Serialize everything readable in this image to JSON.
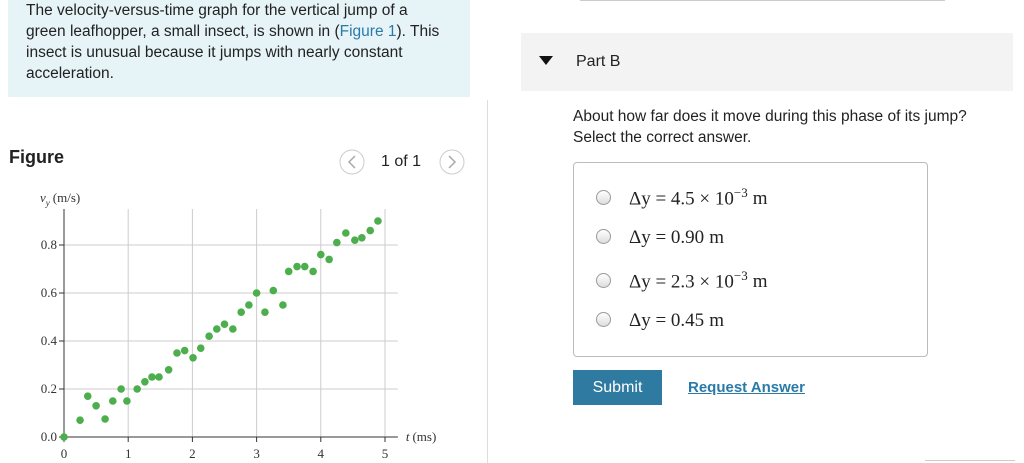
{
  "intro": {
    "before": "The velocity-versus-time graph for the vertical jump of a green leafhopper, a small insect, is shown in (",
    "link": "Figure 1",
    "after": "). This insect is unusual because it jumps with nearly constant acceleration."
  },
  "figure": {
    "title": "Figure",
    "pager": "1 of 1",
    "chart": {
      "type": "scatter",
      "y_label": {
        "var": "v",
        "sub": "y",
        "unit": "(m/s)"
      },
      "x_label": {
        "var": "t",
        "unit": "(ms)"
      },
      "color": "#4cae4c",
      "grid": true,
      "xlim": [
        0,
        5.2
      ],
      "ylim": [
        0,
        0.95
      ],
      "xticks": [
        0,
        1,
        2,
        3,
        4,
        5
      ],
      "yticks": [
        {
          "value": 0,
          "label": "0.0"
        },
        0.2,
        0.4,
        0.6,
        0.8
      ],
      "x": [
        0,
        0.25,
        0.37,
        0.5,
        0.64,
        0.76,
        0.89,
        0.98,
        1.14,
        1.26,
        1.37,
        1.48,
        1.63,
        1.76,
        1.88,
        2.01,
        2.13,
        2.26,
        2.38,
        2.5,
        2.63,
        2.76,
        2.88,
        3.0,
        3.13,
        3.26,
        3.41,
        3.5,
        3.63,
        3.75,
        3.88,
        4.0,
        4.13,
        4.25,
        4.39,
        4.53,
        4.64,
        4.77,
        4.89
      ],
      "y": [
        0,
        0.07,
        0.17,
        0.13,
        0.075,
        0.15,
        0.2,
        0.15,
        0.2,
        0.23,
        0.25,
        0.25,
        0.28,
        0.35,
        0.36,
        0.33,
        0.37,
        0.42,
        0.45,
        0.47,
        0.45,
        0.52,
        0.55,
        0.6,
        0.52,
        0.61,
        0.55,
        0.69,
        0.71,
        0.71,
        0.69,
        0.76,
        0.74,
        0.81,
        0.85,
        0.82,
        0.83,
        0.86,
        0.9
      ]
    }
  },
  "part": {
    "title": "Part B",
    "question": [
      "About how far does it move during this phase of its jump?",
      "Select the correct answer."
    ],
    "options": [
      {
        "main": "Δy = 4.5 × 10",
        "exp": "−3",
        "unit": "m"
      },
      {
        "main": "Δy = 0.90",
        "unit": "m"
      },
      {
        "main": "Δy = 2.3 × 10",
        "exp": "−3",
        "unit": "m"
      },
      {
        "main": "Δy = 0.45",
        "unit": "m"
      }
    ],
    "submit": "Submit",
    "request": "Request Answer"
  }
}
